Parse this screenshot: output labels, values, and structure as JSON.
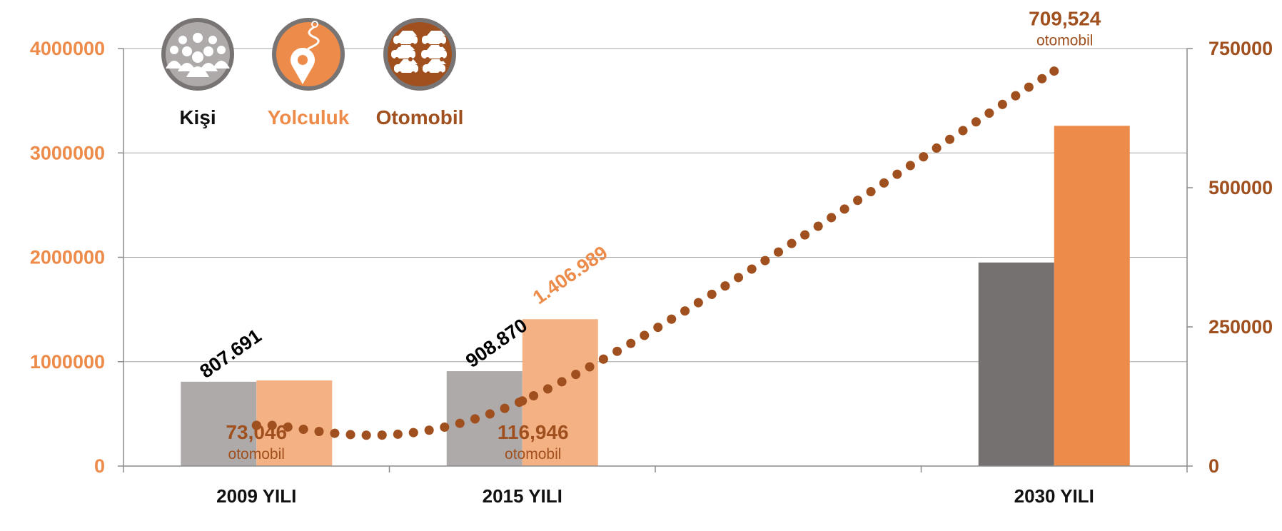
{
  "colors": {
    "kisi_bar": "#aeaaaa",
    "kisi_bar_2030": "#767171",
    "yolculuk_bar": "#f4b183",
    "yolculuk_bar_2030": "#ed8b4a",
    "otomobil": "#a0501e",
    "left_axis": "#ed8b4a",
    "right_axis": "#a0501e",
    "grid": "#a6a6a6"
  },
  "legend": [
    {
      "label": "Kişi",
      "icon": "people-icon",
      "color": "#111111"
    },
    {
      "label": "Yolculuk",
      "icon": "route-pin-icon",
      "color": "#ed8b4a"
    },
    {
      "label": "Otomobil",
      "icon": "cars-icon",
      "color": "#a0501e"
    }
  ],
  "chart_data": {
    "type": "bar",
    "categories": [
      "2009 YILI",
      "2015 YILI",
      "",
      "2030 YILI"
    ],
    "series": [
      {
        "name": "Kişi",
        "axis": "left",
        "values": [
          807691,
          908870,
          null,
          1950000
        ],
        "labels": [
          "807.691",
          "908.870",
          "",
          ""
        ]
      },
      {
        "name": "Yolculuk",
        "axis": "left",
        "values": [
          820000,
          1406989,
          null,
          3260000
        ],
        "labels": [
          "",
          "1.406.989",
          "",
          ""
        ]
      },
      {
        "name": "Otomobil",
        "axis": "right",
        "type": "line",
        "style": "dotted",
        "values": [
          73046,
          116946,
          null,
          709524
        ],
        "labels": [
          {
            "value": "73,046",
            "unit": "otomobil"
          },
          {
            "value": "116,946",
            "unit": "otomobil"
          },
          null,
          {
            "value": "709,524",
            "unit": "otomobil"
          }
        ]
      }
    ],
    "y_left": {
      "ticks": [
        "0",
        "1000000",
        "2000000",
        "3000000",
        "4000000"
      ],
      "ylim": [
        0,
        4000000
      ]
    },
    "y_right": {
      "ticks": [
        "0",
        "250000",
        "500000",
        "750000"
      ],
      "ylim": [
        0,
        750000
      ]
    },
    "grid": true,
    "legend_position": "top-left"
  }
}
